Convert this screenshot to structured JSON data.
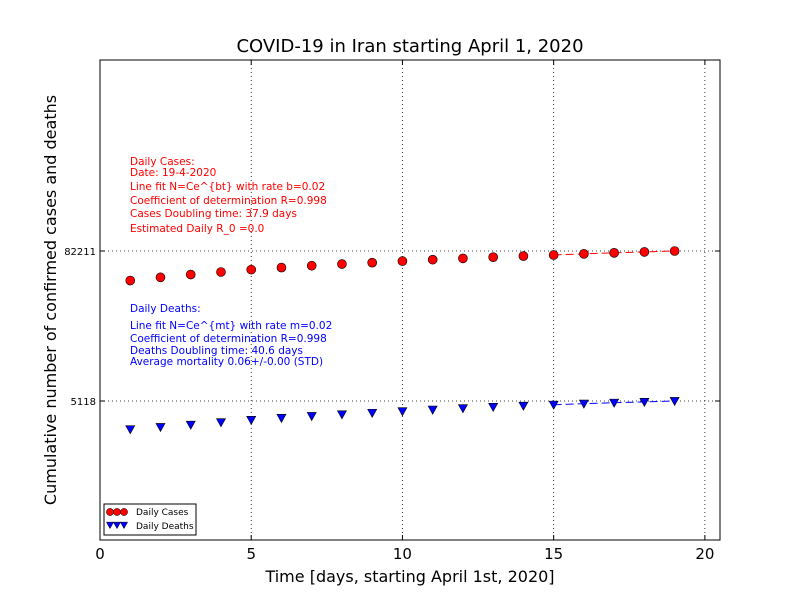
{
  "chart_data": {
    "type": "scatter",
    "title": "COVID-19 in Iran starting April 1, 2020",
    "xlabel": "Time [days, starting April 1st, 2020]",
    "ylabel": "Cumulative number of confirmed cases and deaths",
    "xlim": [
      0,
      20.5
    ],
    "xticks": [
      0,
      5,
      10,
      15,
      20
    ],
    "yticks": [
      {
        "label": "82211"
      },
      {
        "label": "5118"
      }
    ],
    "grid": true,
    "legend_position": "lower-left",
    "series": [
      {
        "name": "Daily Cases",
        "marker": "circle",
        "color": "#ff0000",
        "x": [
          1,
          2,
          3,
          4,
          5,
          6,
          7,
          8,
          9,
          10,
          11,
          12,
          13,
          14,
          15,
          16,
          17,
          18,
          19
        ],
        "y": [
          47593,
          50468,
          53183,
          55743,
          58226,
          60500,
          62589,
          64586,
          66220,
          68192,
          70029,
          71686,
          73303,
          74877,
          76389,
          77995,
          79494,
          80868,
          82211
        ],
        "fit_from_x": 15
      },
      {
        "name": "Daily Deaths",
        "marker": "triangle-down",
        "color": "#0000ff",
        "x": [
          1,
          2,
          3,
          4,
          5,
          6,
          7,
          8,
          9,
          10,
          11,
          12,
          13,
          14,
          15,
          16,
          17,
          18,
          19
        ],
        "y": [
          3036,
          3160,
          3294,
          3452,
          3603,
          3739,
          3872,
          3993,
          4110,
          4232,
          4357,
          4474,
          4585,
          4683,
          4777,
          4869,
          4958,
          5031,
          5118
        ],
        "fit_from_x": 15
      }
    ],
    "annotations": {
      "cases": {
        "color": "#ff0000",
        "lines": [
          "Daily Cases:",
          "Date: 19-4-2020",
          "Line fit N=Ce^{bt} with rate b=0.02",
          "Coefficient of determination R=0.998",
          "Cases Doubling time: 37.9 days",
          "Estimated Daily R_0 =0.0"
        ]
      },
      "deaths": {
        "color": "#0000ff",
        "lines": [
          "Daily Deaths:",
          "Line fit N=Ce^{mt} with rate m=0.02",
          "Coefficient of determination R=0.998",
          "Deaths Doubling time: 40.6 days",
          "Average mortality 0.06+/-0.00 (STD)"
        ]
      }
    }
  }
}
